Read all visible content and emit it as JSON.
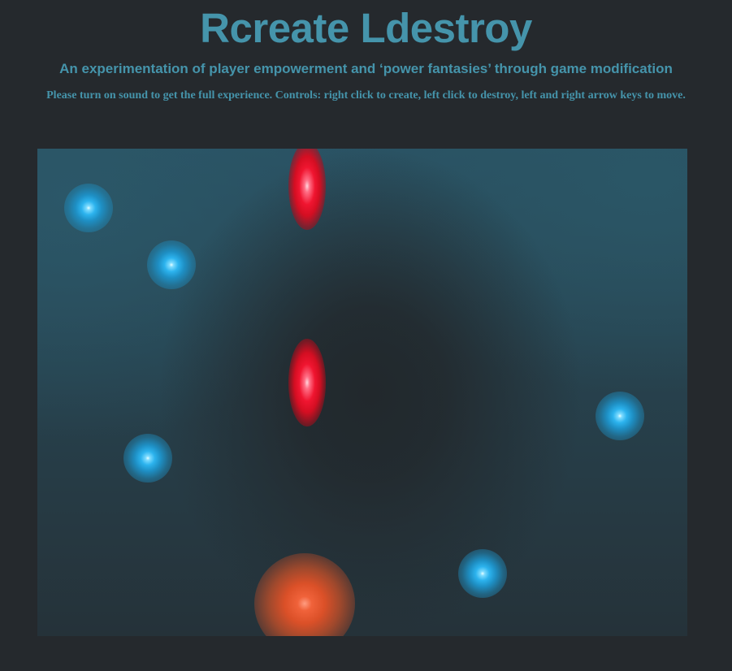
{
  "header": {
    "title": "Rcreate Ldestroy",
    "subtitle": "An experimentation of player empowerment and ‘power fantasies’ through game modification",
    "instructions": "Please turn on sound to get the full experience. Controls: right click to create, left click to destroy, left and right arrow keys to move."
  },
  "game": {
    "objects": [
      {
        "type": "blue-orb"
      },
      {
        "type": "blue-orb"
      },
      {
        "type": "blue-orb"
      },
      {
        "type": "blue-orb"
      },
      {
        "type": "blue-orb"
      },
      {
        "type": "red-enemy"
      },
      {
        "type": "red-enemy"
      },
      {
        "type": "orange-player"
      }
    ]
  },
  "colors": {
    "page_background": "#25292d",
    "heading_text": "#4594ab",
    "blue_orb": "#2cb3ee",
    "red_enemy": "#f01530",
    "orange_player": "#f0623a"
  }
}
